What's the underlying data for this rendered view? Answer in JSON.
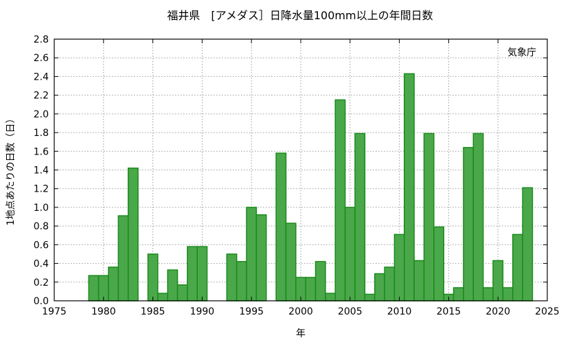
{
  "chart_data": {
    "type": "bar",
    "title": "福井県　[アメダス］日降水量100mm以上の年間日数",
    "xlabel": "年",
    "ylabel": "1地点あたりの日数（日）",
    "annotation": "気象庁",
    "xlim": [
      1975,
      2025
    ],
    "ylim": [
      0,
      2.8
    ],
    "xticks": [
      1975,
      1980,
      1985,
      1990,
      1995,
      2000,
      2005,
      2010,
      2015,
      2020,
      2025
    ],
    "yticks": [
      0.0,
      0.2,
      0.4,
      0.6,
      0.8,
      1.0,
      1.2,
      1.4,
      1.6,
      1.8,
      2.0,
      2.2,
      2.4,
      2.6,
      2.8
    ],
    "grid": true,
    "bar_color": "#4aa84a",
    "bar_edge_color": "#1a8a1a",
    "x": [
      1979,
      1980,
      1981,
      1982,
      1983,
      1984,
      1985,
      1986,
      1987,
      1988,
      1989,
      1990,
      1991,
      1992,
      1993,
      1994,
      1995,
      1996,
      1997,
      1998,
      1999,
      2000,
      2001,
      2002,
      2003,
      2004,
      2005,
      2006,
      2007,
      2008,
      2009,
      2010,
      2011,
      2012,
      2013,
      2014,
      2015,
      2016,
      2017,
      2018,
      2019,
      2020,
      2021,
      2022,
      2023
    ],
    "values": [
      0.27,
      0.27,
      0.36,
      0.91,
      1.42,
      0,
      0.5,
      0.08,
      0.33,
      0.17,
      0.58,
      0.58,
      0,
      0,
      0.5,
      0.42,
      1.0,
      0.92,
      0,
      1.58,
      0.83,
      0.25,
      0.25,
      0.42,
      0.08,
      2.15,
      1.0,
      1.79,
      0.07,
      0.29,
      0.36,
      0.71,
      2.43,
      0.43,
      1.79,
      0.79,
      0.07,
      0.14,
      1.64,
      1.79,
      0.14,
      0.43,
      0.14,
      0.71,
      1.21
    ]
  }
}
